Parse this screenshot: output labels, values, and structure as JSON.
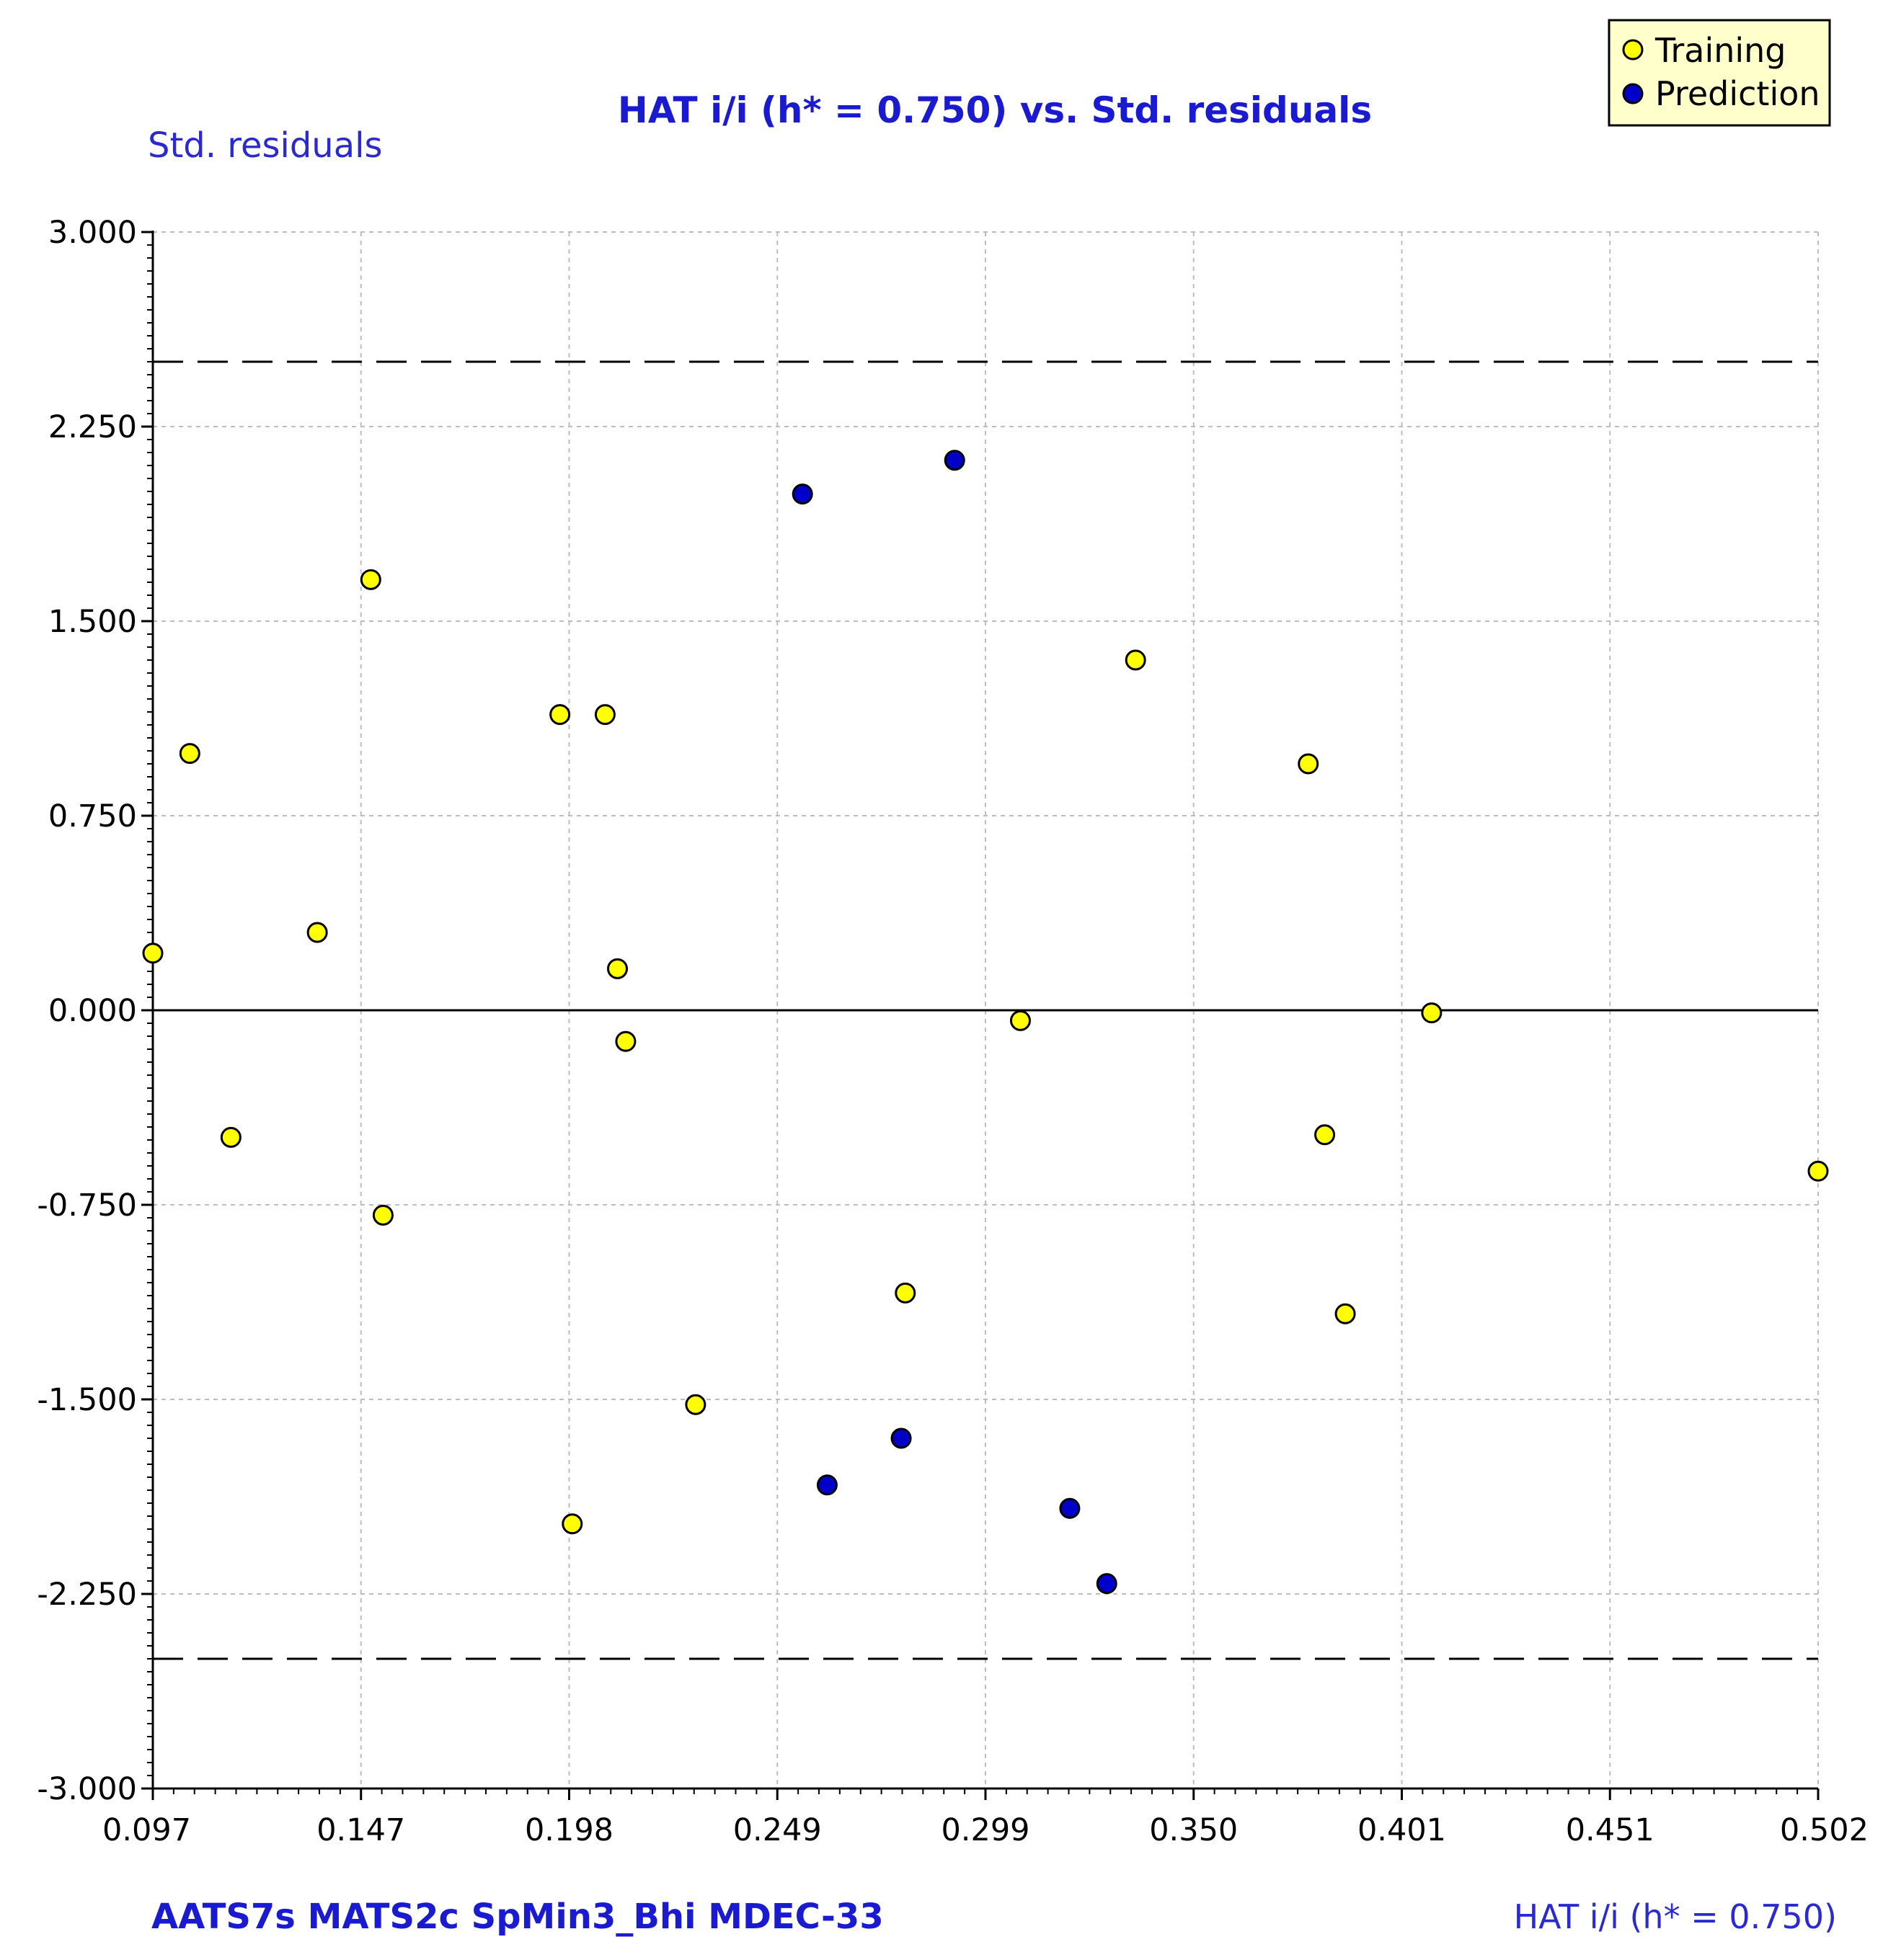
{
  "chart_data": {
    "type": "scatter",
    "title": "HAT i/i (h* = 0.750) vs. Std. residuals",
    "ylabel": "Std. residuals",
    "xlabel": "HAT i/i (h* = 0.750)",
    "descriptors": "AATS7s  MATS2c  SpMin3_Bhi  MDEC-33",
    "xlim": [
      0.097,
      0.502
    ],
    "ylim": [
      -3.0,
      3.0
    ],
    "x_ticks": [
      "0.097",
      "0.147",
      "0.198",
      "0.249",
      "0.299",
      "0.350",
      "0.401",
      "0.451",
      "0.502"
    ],
    "y_ticks": [
      "3.000",
      "2.250",
      "1.500",
      "0.750",
      "0.000",
      "-0.750",
      "-1.500",
      "-2.250",
      "-3.000"
    ],
    "threshold_lines": [
      2.5,
      -2.5
    ],
    "zero_line": 0.0,
    "grid": true,
    "legend_position": "top-right",
    "series": [
      {
        "name": "Training",
        "color": "#ffff00",
        "points": [
          {
            "x": 0.097,
            "y": 0.22
          },
          {
            "x": 0.106,
            "y": 0.99
          },
          {
            "x": 0.116,
            "y": -0.49
          },
          {
            "x": 0.137,
            "y": 0.3
          },
          {
            "x": 0.15,
            "y": 1.66
          },
          {
            "x": 0.153,
            "y": -0.79
          },
          {
            "x": 0.196,
            "y": 1.14
          },
          {
            "x": 0.199,
            "y": -1.98
          },
          {
            "x": 0.207,
            "y": 1.14
          },
          {
            "x": 0.21,
            "y": 0.16
          },
          {
            "x": 0.212,
            "y": -0.12
          },
          {
            "x": 0.229,
            "y": -1.52
          },
          {
            "x": 0.28,
            "y": -1.09
          },
          {
            "x": 0.308,
            "y": -0.04
          },
          {
            "x": 0.336,
            "y": 1.35
          },
          {
            "x": 0.378,
            "y": 0.95
          },
          {
            "x": 0.382,
            "y": -0.48
          },
          {
            "x": 0.387,
            "y": -1.17
          },
          {
            "x": 0.408,
            "y": -0.01
          },
          {
            "x": 0.502,
            "y": -0.62
          }
        ]
      },
      {
        "name": "Prediction",
        "color": "#0000c8",
        "points": [
          {
            "x": 0.255,
            "y": 1.99
          },
          {
            "x": 0.261,
            "y": -1.83
          },
          {
            "x": 0.279,
            "y": -1.65
          },
          {
            "x": 0.292,
            "y": 2.12
          },
          {
            "x": 0.32,
            "y": -1.92
          },
          {
            "x": 0.329,
            "y": -2.21
          }
        ]
      }
    ]
  }
}
